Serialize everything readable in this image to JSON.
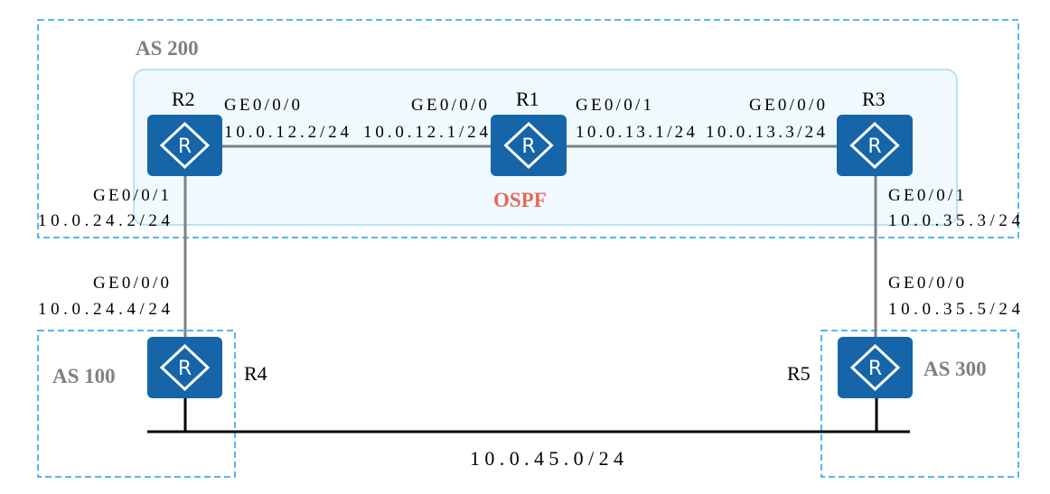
{
  "colors": {
    "router": "#1565a8",
    "as_border": "#1ea0e0",
    "ospf_area_fill": "#f0f9fd",
    "ospf_area_border": "#a6dcf2",
    "ospf_text": "#e8685a",
    "link": "#808080"
  },
  "areas": {
    "as200": "AS 200",
    "as100": "AS 100",
    "as300": "AS 300",
    "ospf": "OSPF"
  },
  "routers": {
    "r1": "R1",
    "r2": "R2",
    "r3": "R3",
    "r4": "R4",
    "r5": "R5",
    "icon_letter": "R"
  },
  "interfaces": {
    "r2_ge000": "GE0/0/0",
    "r2_ge000_ip": "10.0.12.2/24",
    "r1_ge000": "GE0/0/0",
    "r1_ge000_ip": "10.0.12.1/24",
    "r1_ge001": "GE0/0/1",
    "r1_ge001_ip": "10.0.13.1/24",
    "r3_ge000": "GE0/0/0",
    "r3_ge000_ip": "10.0.13.3/24",
    "r2_ge001": "GE0/0/1",
    "r2_ge001_ip": "10.0.24.2/24",
    "r4_ge000": "GE0/0/0",
    "r4_ge000_ip": "10.0.24.4/24",
    "r3_ge001": "GE0/0/1",
    "r3_ge001_ip": "10.0.35.3/24",
    "r5_ge000": "GE0/0/0",
    "r5_ge000_ip": "10.0.35.5/24"
  },
  "bus_network": "10.0.45.0/24"
}
